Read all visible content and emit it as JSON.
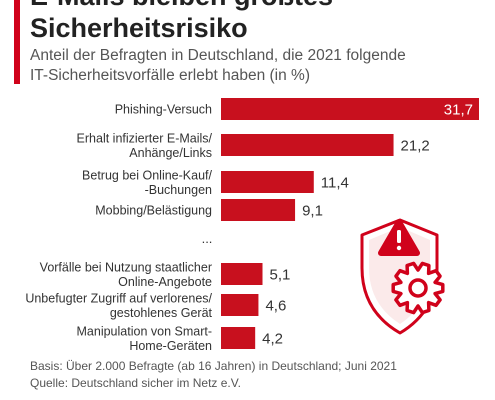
{
  "header": {
    "title_line1": "E-Mails bleiben größtes",
    "title_line2": "Sicherheitsrisiko",
    "subtitle_line1": "Anteil der Befragten in Deutschland, die 2021 folgende",
    "subtitle_line2": "IT-Sicherheitsvorfälle erlebt haben (in %)"
  },
  "chart_data": {
    "type": "bar",
    "orientation": "horizontal",
    "categories": [
      [
        "Phishing-Versuch"
      ],
      [
        "Erhalt infizierter E-Mails/",
        "Anhänge/Links"
      ],
      [
        "Betrug bei Online-Kauf/",
        "-Buchungen"
      ],
      [
        "Mobbing/Belästigung"
      ],
      [
        "Vorfälle bei Nutzung staatlicher",
        "Online-Angebote"
      ],
      [
        "Unbefugter Zugriff auf verlorenes/",
        "gestohlenes Gerät"
      ],
      [
        "Manipulation von Smart-",
        "Home-Geräten"
      ]
    ],
    "values": [
      31.7,
      21.2,
      11.4,
      9.1,
      5.1,
      4.6,
      4.2
    ],
    "value_labels": [
      "31,7",
      "21,2",
      "11,4",
      "9,1",
      "5,1",
      "4,6",
      "4,2"
    ],
    "gap_label": "...",
    "xlim": [
      0,
      31.7
    ],
    "bar_color": "#c8101e",
    "grid": false,
    "legend": "none"
  },
  "illustration": {
    "icon": "warning-shield-gear-icon",
    "color": "#d0021b"
  },
  "footer": {
    "basis": "Basis: Über 2.000 Befragte (ab 16 Jahren) in Deutschland; Juni 2021",
    "source": "Quelle: Deutschland sicher im Netz e.V."
  },
  "colors": {
    "accent": "#d0021b",
    "bar": "#c8101e"
  }
}
